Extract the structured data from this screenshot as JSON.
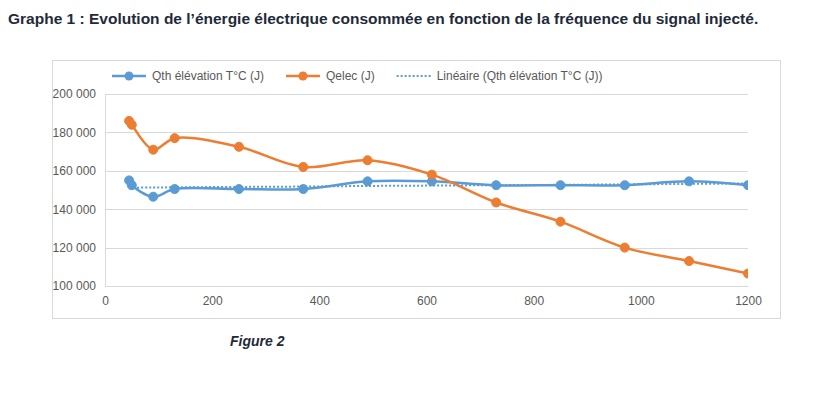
{
  "chart_data": {
    "type": "line",
    "title": "Graphe 1 : Evolution de l’énergie électrique consommée en fonction de la fréquence du signal injecté.",
    "caption": "Figure 2",
    "x": [
      45,
      50,
      90,
      130,
      250,
      370,
      490,
      610,
      730,
      850,
      970,
      1090,
      1200
    ],
    "series": [
      {
        "name": "Qth élévation T°C (J)",
        "color": "#5b9bd5",
        "marker": "circle",
        "line_style": "solid",
        "values": [
          155000,
          152500,
          146500,
          150500,
          150500,
          150500,
          154500,
          154500,
          152500,
          152500,
          152500,
          154500,
          152500
        ]
      },
      {
        "name": "Qelec (J)",
        "color": "#ed7d31",
        "marker": "circle",
        "line_style": "solid",
        "values": [
          186000,
          184000,
          171000,
          177000,
          172500,
          162000,
          165500,
          158000,
          143500,
          133500,
          120000,
          113000,
          106500
        ]
      },
      {
        "name": "Linéaire (Qth élévation T°C (J))",
        "color": "#5b9bd5",
        "marker": "none",
        "line_style": "dotted",
        "values": [
          151200,
          151200,
          151300,
          151400,
          151600,
          151800,
          152100,
          152300,
          152500,
          152700,
          152900,
          153200,
          153400
        ]
      }
    ],
    "xlim": [
      0,
      1200
    ],
    "xticks": [
      0,
      200,
      400,
      600,
      800,
      1000,
      1200
    ],
    "ylim": [
      100000,
      200000
    ],
    "yticks": [
      {
        "value": 100000,
        "label": "100 000"
      },
      {
        "value": 120000,
        "label": "120 000"
      },
      {
        "value": 140000,
        "label": "140 000"
      },
      {
        "value": 160000,
        "label": "160 000"
      },
      {
        "value": 180000,
        "label": "180 000"
      },
      {
        "value": 200000,
        "label": "200 000"
      }
    ],
    "grid": true,
    "legend": "top"
  }
}
